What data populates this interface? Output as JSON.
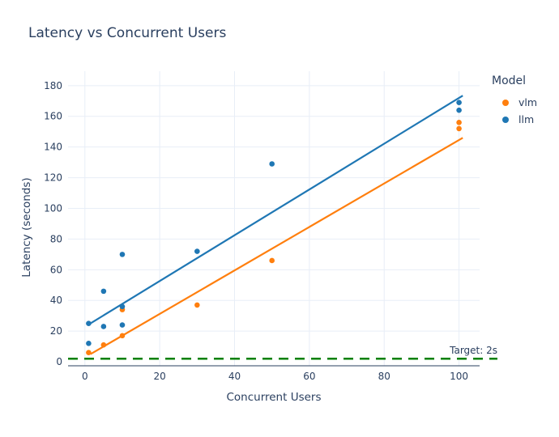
{
  "chart_data": {
    "type": "scatter",
    "title": "Latency vs Concurrent Users",
    "xlabel": "Concurrent Users",
    "ylabel": "Latency (seconds)",
    "xlim": [
      -4.5,
      105.5
    ],
    "ylim": [
      -2.6,
      189.4
    ],
    "xticks": [
      0,
      20,
      40,
      60,
      80,
      100
    ],
    "yticks": [
      0,
      20,
      40,
      60,
      80,
      100,
      120,
      140,
      160,
      180
    ],
    "grid": true,
    "legend": {
      "title": "Model",
      "position": "outside-top-right",
      "items": [
        "vlm",
        "llm"
      ]
    },
    "series": [
      {
        "name": "vlm",
        "color": "#ff7f0e",
        "points": [
          [
            1,
            6
          ],
          [
            5,
            11
          ],
          [
            10,
            17
          ],
          [
            10,
            34
          ],
          [
            30,
            37
          ],
          [
            50,
            66
          ],
          [
            100,
            152
          ],
          [
            100,
            156
          ]
        ],
        "trendline": {
          "x": [
            1.5,
            101
          ],
          "y": [
            5,
            146
          ]
        }
      },
      {
        "name": "llm",
        "color": "#1f77b4",
        "points": [
          [
            1,
            12
          ],
          [
            1,
            25
          ],
          [
            5,
            23
          ],
          [
            5,
            46
          ],
          [
            10,
            24
          ],
          [
            10,
            36
          ],
          [
            10,
            70
          ],
          [
            30,
            72
          ],
          [
            50,
            129
          ],
          [
            100,
            164
          ],
          [
            100,
            169
          ]
        ],
        "trendline": {
          "x": [
            0.8,
            101
          ],
          "y": [
            24,
            173.5
          ]
        }
      }
    ],
    "target_line": {
      "y": 2,
      "label": "Target: 2s",
      "color": "#008000",
      "style": "dashed"
    },
    "colors": {
      "text": "#2a3f5f",
      "grid": "#e8eef7",
      "axis_line": "#2a3f5f",
      "background": "#ffffff"
    }
  }
}
